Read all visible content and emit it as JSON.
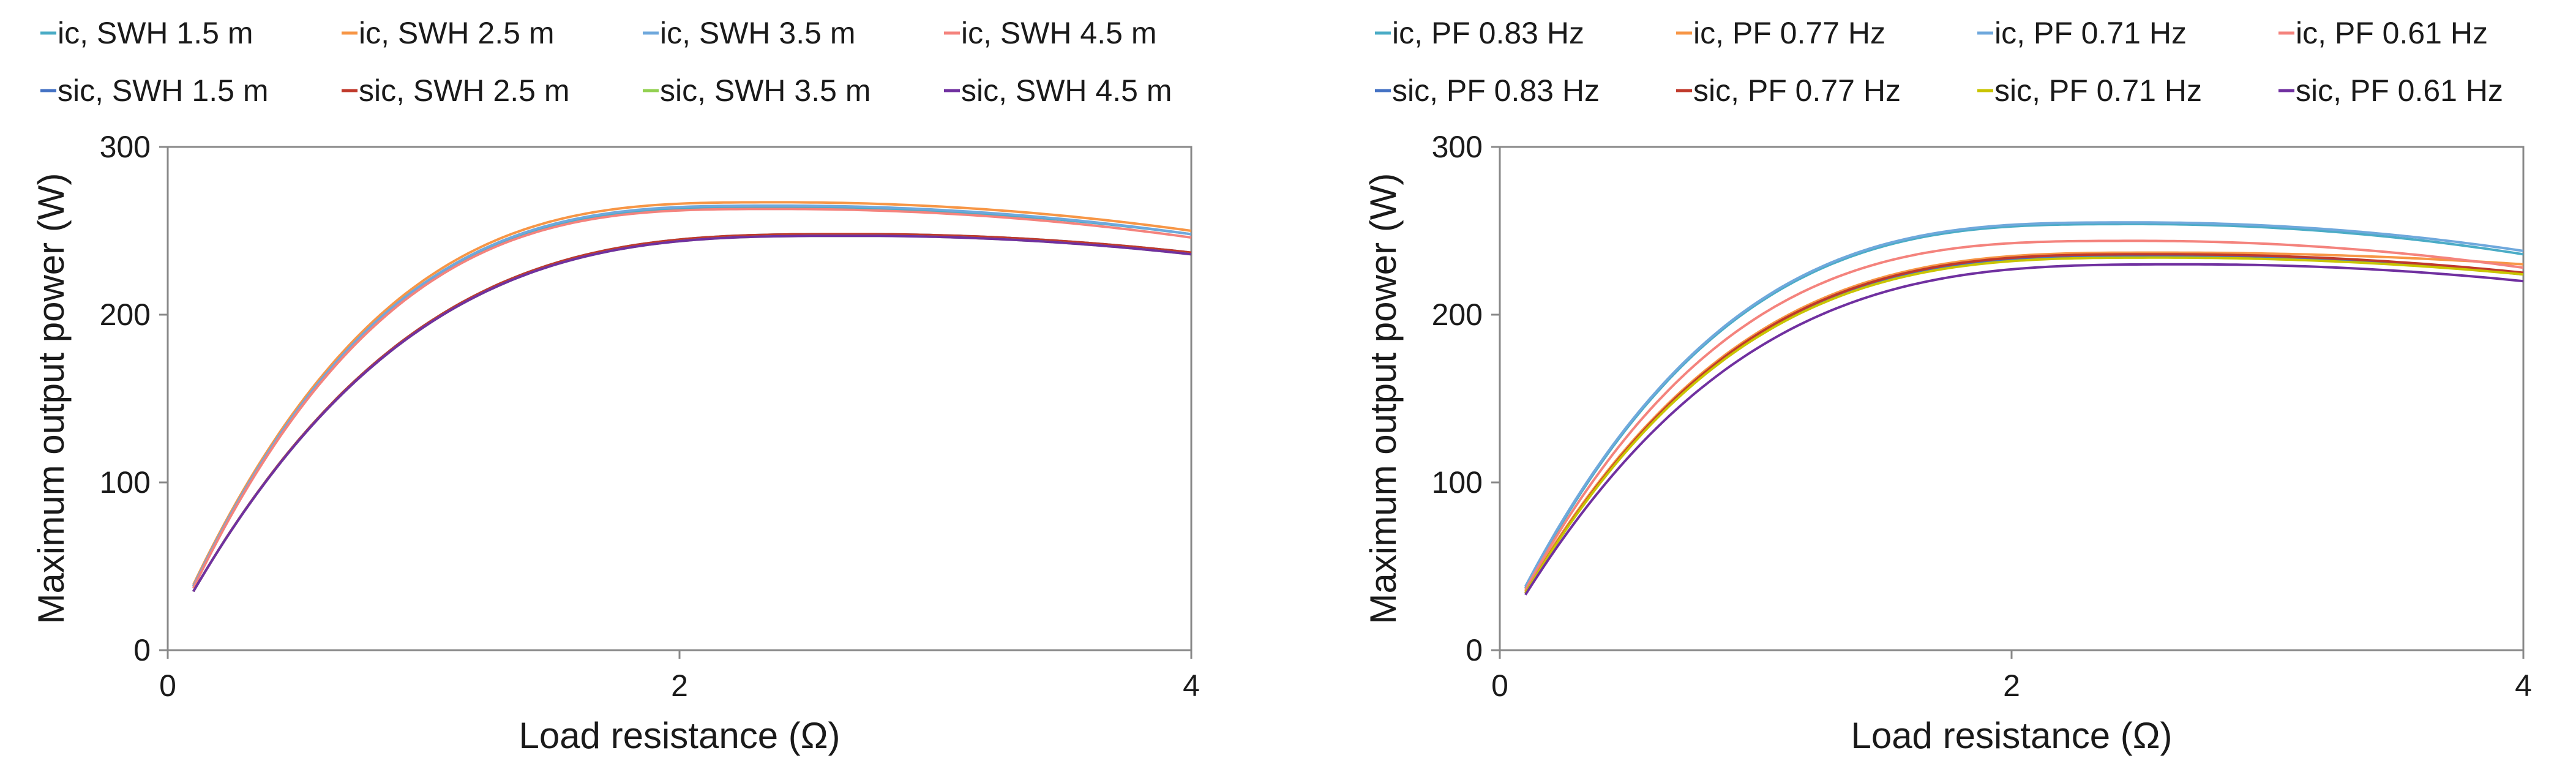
{
  "chart_data": [
    {
      "type": "line",
      "title": "",
      "xlabel": "Load resistance (Ω)",
      "ylabel": "Maximum output power (W)",
      "xlim": [
        0,
        4
      ],
      "ylim": [
        0,
        300
      ],
      "xticks": [
        0,
        2,
        4
      ],
      "yticks": [
        0,
        100,
        200,
        300
      ],
      "grid": false,
      "legend_position": "top",
      "series": [
        {
          "name": "ic, SWH 1.5 m",
          "color": "#4BACC6",
          "peak_x": 2.4,
          "peak_y": 264,
          "y_at_start": 38,
          "y_at_end": 248
        },
        {
          "name": "ic, SWH 2.5 m",
          "color": "#F79646",
          "peak_x": 2.4,
          "peak_y": 267,
          "y_at_start": 39,
          "y_at_end": 250
        },
        {
          "name": "ic, SWH 3.5 m",
          "color": "#6FA8DC",
          "peak_x": 2.4,
          "peak_y": 265,
          "y_at_start": 38,
          "y_at_end": 248
        },
        {
          "name": "ic, SWH 4.5 m",
          "color": "#F4837D",
          "peak_x": 2.4,
          "peak_y": 263,
          "y_at_start": 37,
          "y_at_end": 246
        },
        {
          "name": "sic, SWH 1.5 m",
          "color": "#4472C4",
          "peak_x": 2.7,
          "peak_y": 248,
          "y_at_start": 35,
          "y_at_end": 237
        },
        {
          "name": "sic, SWH 2.5 m",
          "color": "#C0392B",
          "peak_x": 2.7,
          "peak_y": 248,
          "y_at_start": 35,
          "y_at_end": 237
        },
        {
          "name": "sic, SWH 3.5 m",
          "color": "#92D050",
          "peak_x": 2.7,
          "peak_y": 247,
          "y_at_start": 35,
          "y_at_end": 236
        },
        {
          "name": "sic, SWH 4.5 m",
          "color": "#7030A0",
          "peak_x": 2.7,
          "peak_y": 247,
          "y_at_start": 35,
          "y_at_end": 236
        }
      ]
    },
    {
      "type": "line",
      "title": "",
      "xlabel": "Load resistance (Ω)",
      "ylabel": "Maximum output power (W)",
      "xlim": [
        0,
        4
      ],
      "ylim": [
        0,
        300
      ],
      "xticks": [
        0,
        2,
        4
      ],
      "yticks": [
        0,
        100,
        200,
        300
      ],
      "grid": false,
      "legend_position": "top",
      "series": [
        {
          "name": "ic, PF 0.83 Hz",
          "color": "#4BACC6",
          "peak_x": 2.5,
          "peak_y": 254,
          "y_at_start": 37,
          "y_at_end": 236
        },
        {
          "name": "ic, PF 0.77 Hz",
          "color": "#F79646",
          "peak_x": 2.6,
          "peak_y": 237,
          "y_at_start": 35,
          "y_at_end": 230
        },
        {
          "name": "ic, PF 0.71 Hz",
          "color": "#6FA8DC",
          "peak_x": 2.5,
          "peak_y": 255,
          "y_at_start": 38,
          "y_at_end": 238
        },
        {
          "name": "ic, PF 0.61 Hz",
          "color": "#F4837D",
          "peak_x": 2.5,
          "peak_y": 244,
          "y_at_start": 36,
          "y_at_end": 228
        },
        {
          "name": "sic, PF 0.83 Hz",
          "color": "#4472C4",
          "peak_x": 2.6,
          "peak_y": 235,
          "y_at_start": 34,
          "y_at_end": 224
        },
        {
          "name": "sic, PF 0.77 Hz",
          "color": "#C0392B",
          "peak_x": 2.6,
          "peak_y": 236,
          "y_at_start": 34,
          "y_at_end": 225
        },
        {
          "name": "sic, PF 0.71 Hz",
          "color": "#C9C400",
          "peak_x": 2.6,
          "peak_y": 234,
          "y_at_start": 34,
          "y_at_end": 224
        },
        {
          "name": "sic, PF 0.61 Hz",
          "color": "#7030A0",
          "peak_x": 2.7,
          "peak_y": 230,
          "y_at_start": 33,
          "y_at_end": 220
        }
      ]
    }
  ]
}
